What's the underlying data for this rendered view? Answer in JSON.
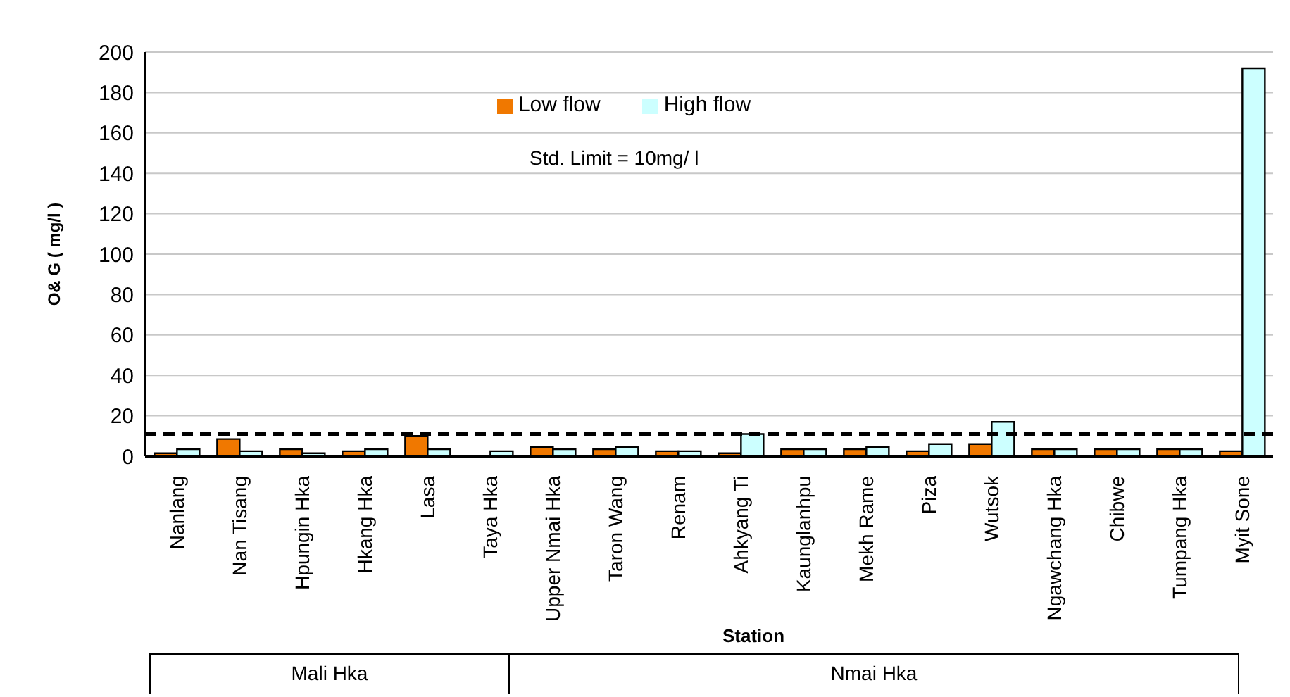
{
  "chart_data": {
    "type": "bar",
    "xlabel": "Station",
    "ylabel": "O& G ( mg/l )",
    "categories": [
      "Nanlang",
      "Nan Tisang",
      "Hpungin Hka",
      "Hkang Hka",
      "Lasa",
      "Taya Hka",
      "Upper Nmai Hka",
      "Taron Wang",
      "Renam",
      "Ahkyang Ti",
      "Kaunglanhpu",
      "Mekh Rame",
      "Piza",
      "Wutsok",
      "Ngawchang Hka",
      "Chibwe",
      "Tumpang Hka",
      "Myit Sone"
    ],
    "series": [
      {
        "name": "Low flow",
        "color": "#f07800",
        "values": [
          1.5,
          8.5,
          3.5,
          2.5,
          10,
          null,
          4.5,
          3.5,
          2.5,
          1.5,
          3.5,
          3.5,
          2.5,
          6,
          3.5,
          3.5,
          3.5,
          2.5
        ]
      },
      {
        "name": "High flow",
        "color": "#ccffff",
        "values": [
          3.5,
          2.5,
          1.5,
          3.5,
          3.5,
          2.5,
          3.5,
          4.5,
          2.5,
          11,
          3.5,
          4.5,
          6,
          17,
          3.5,
          3.5,
          3.5,
          192
        ]
      }
    ],
    "ylim": [
      0,
      200
    ],
    "yticks": [
      0,
      20,
      40,
      60,
      80,
      100,
      120,
      140,
      160,
      180,
      200
    ],
    "grid": "y",
    "legend": "top",
    "ref_lines": [
      {
        "axis": "y",
        "value": 11,
        "line_style": "dashed",
        "color": "#000000"
      }
    ],
    "annotations": [
      "Std. Limit = 10mg/ l",
      "Mali Hka",
      "Nmai Hka"
    ]
  }
}
